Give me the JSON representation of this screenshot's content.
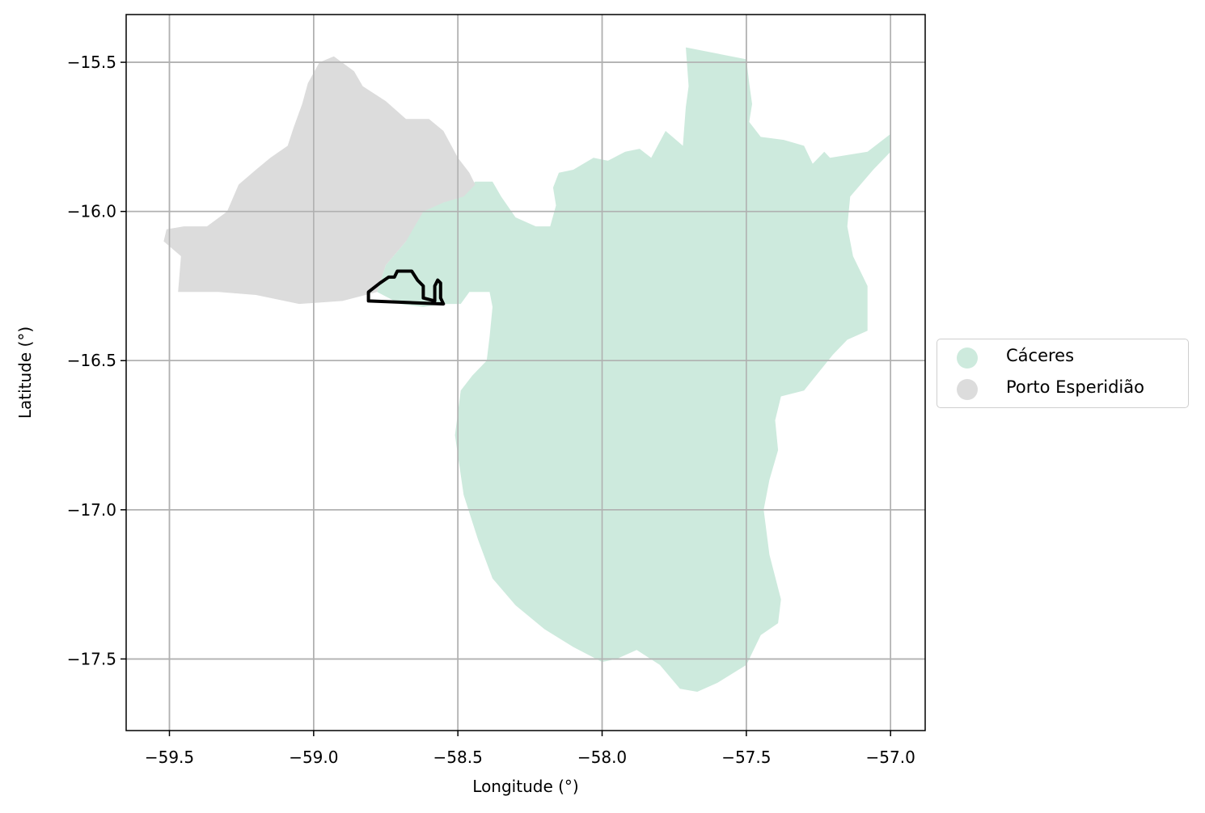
{
  "chart_data": {
    "type": "map",
    "xlabel": "Longitude (°)",
    "ylabel": "Latitude (°)",
    "xlim": [
      -59.65,
      -56.88
    ],
    "ylim": [
      -17.74,
      -15.34
    ],
    "x_ticks": [
      -59.5,
      -59.0,
      -58.5,
      -58.0,
      -57.5,
      -57.0
    ],
    "y_ticks": [
      -15.5,
      -16.0,
      -16.5,
      -17.0,
      -17.5
    ],
    "x_tick_labels": [
      "−59.5",
      "−59.0",
      "−58.5",
      "−58.0",
      "−57.5",
      "−57.0"
    ],
    "y_tick_labels": [
      "−15.5",
      "−16.0",
      "−16.5",
      "−17.0",
      "−17.5"
    ],
    "grid": true,
    "legend_position": "center-right outside",
    "regions": [
      {
        "name": "Cáceres",
        "color": "#cdeadd",
        "polygon": [
          [
            -57.71,
            -15.45
          ],
          [
            -57.5,
            -15.49
          ],
          [
            -57.49,
            -15.57
          ],
          [
            -57.48,
            -15.64
          ],
          [
            -57.49,
            -15.7
          ],
          [
            -57.45,
            -15.75
          ],
          [
            -57.37,
            -15.76
          ],
          [
            -57.3,
            -15.78
          ],
          [
            -57.27,
            -15.84
          ],
          [
            -57.23,
            -15.8
          ],
          [
            -57.21,
            -15.82
          ],
          [
            -57.08,
            -15.8
          ],
          [
            -57.0,
            -15.74
          ],
          [
            -57.0,
            -15.8
          ],
          [
            -57.06,
            -15.86
          ],
          [
            -57.14,
            -15.95
          ],
          [
            -57.15,
            -16.05
          ],
          [
            -57.13,
            -16.15
          ],
          [
            -57.08,
            -16.25
          ],
          [
            -57.08,
            -16.4
          ],
          [
            -57.15,
            -16.43
          ],
          [
            -57.2,
            -16.48
          ],
          [
            -57.3,
            -16.6
          ],
          [
            -57.38,
            -16.62
          ],
          [
            -57.4,
            -16.7
          ],
          [
            -57.39,
            -16.8
          ],
          [
            -57.42,
            -16.9
          ],
          [
            -57.44,
            -17.0
          ],
          [
            -57.42,
            -17.15
          ],
          [
            -57.38,
            -17.3
          ],
          [
            -57.39,
            -17.38
          ],
          [
            -57.45,
            -17.42
          ],
          [
            -57.5,
            -17.52
          ],
          [
            -57.6,
            -17.58
          ],
          [
            -57.67,
            -17.61
          ],
          [
            -57.73,
            -17.6
          ],
          [
            -57.8,
            -17.52
          ],
          [
            -57.88,
            -17.47
          ],
          [
            -57.95,
            -17.5
          ],
          [
            -58.0,
            -17.51
          ],
          [
            -58.1,
            -17.46
          ],
          [
            -58.2,
            -17.4
          ],
          [
            -58.3,
            -17.32
          ],
          [
            -58.38,
            -17.23
          ],
          [
            -58.43,
            -17.1
          ],
          [
            -58.48,
            -16.95
          ],
          [
            -58.51,
            -16.75
          ],
          [
            -58.49,
            -16.6
          ],
          [
            -58.45,
            -16.55
          ],
          [
            -58.4,
            -16.5
          ],
          [
            -58.39,
            -16.42
          ],
          [
            -58.38,
            -16.32
          ],
          [
            -58.39,
            -16.27
          ],
          [
            -58.43,
            -16.27
          ],
          [
            -58.46,
            -16.27
          ],
          [
            -58.49,
            -16.31
          ],
          [
            -58.55,
            -16.31
          ],
          [
            -58.62,
            -16.32
          ],
          [
            -58.7,
            -16.31
          ],
          [
            -58.78,
            -16.27
          ],
          [
            -58.75,
            -16.18
          ],
          [
            -58.68,
            -16.1
          ],
          [
            -58.65,
            -16.0
          ],
          [
            -58.6,
            -15.96
          ],
          [
            -58.55,
            -15.97
          ],
          [
            -58.5,
            -15.95
          ],
          [
            -58.44,
            -15.9
          ],
          [
            -58.38,
            -15.9
          ],
          [
            -58.35,
            -15.95
          ],
          [
            -58.3,
            -16.02
          ],
          [
            -58.23,
            -16.05
          ],
          [
            -58.18,
            -16.05
          ],
          [
            -58.16,
            -15.98
          ],
          [
            -58.17,
            -15.92
          ],
          [
            -58.15,
            -15.87
          ],
          [
            -58.1,
            -15.86
          ],
          [
            -58.03,
            -15.82
          ],
          [
            -57.98,
            -15.83
          ],
          [
            -57.92,
            -15.8
          ],
          [
            -57.87,
            -15.79
          ],
          [
            -57.83,
            -15.82
          ],
          [
            -57.78,
            -15.73
          ],
          [
            -57.72,
            -15.78
          ],
          [
            -57.71,
            -15.65
          ],
          [
            -57.7,
            -15.58
          ]
        ]
      },
      {
        "name": "Porto Esperidião",
        "color": "#dcdcdc",
        "polygon": [
          [
            -58.93,
            -15.48
          ],
          [
            -58.86,
            -15.53
          ],
          [
            -58.83,
            -15.58
          ],
          [
            -58.75,
            -15.63
          ],
          [
            -58.68,
            -15.69
          ],
          [
            -58.6,
            -15.69
          ],
          [
            -58.55,
            -15.73
          ],
          [
            -58.5,
            -15.82
          ],
          [
            -58.46,
            -15.87
          ],
          [
            -58.44,
            -15.91
          ],
          [
            -58.48,
            -15.95
          ],
          [
            -58.55,
            -15.97
          ],
          [
            -58.62,
            -16.0
          ],
          [
            -58.68,
            -16.1
          ],
          [
            -58.75,
            -16.18
          ],
          [
            -58.78,
            -16.27
          ],
          [
            -58.9,
            -16.3
          ],
          [
            -59.05,
            -16.31
          ],
          [
            -59.2,
            -16.28
          ],
          [
            -59.33,
            -16.27
          ],
          [
            -59.47,
            -16.27
          ],
          [
            -59.46,
            -16.15
          ],
          [
            -59.52,
            -16.1
          ],
          [
            -59.51,
            -16.06
          ],
          [
            -59.45,
            -16.05
          ],
          [
            -59.37,
            -16.05
          ],
          [
            -59.3,
            -16.0
          ],
          [
            -59.26,
            -15.91
          ],
          [
            -59.2,
            -15.86
          ],
          [
            -59.15,
            -15.82
          ],
          [
            -59.09,
            -15.78
          ],
          [
            -59.07,
            -15.72
          ],
          [
            -59.04,
            -15.64
          ],
          [
            -59.02,
            -15.57
          ],
          [
            -58.98,
            -15.5
          ]
        ]
      }
    ],
    "outline": {
      "color": "#000000",
      "polygon": [
        [
          -58.81,
          -16.27
        ],
        [
          -58.77,
          -16.24
        ],
        [
          -58.74,
          -16.22
        ],
        [
          -58.72,
          -16.22
        ],
        [
          -58.71,
          -16.2
        ],
        [
          -58.69,
          -16.2
        ],
        [
          -58.66,
          -16.2
        ],
        [
          -58.64,
          -16.23
        ],
        [
          -58.62,
          -16.25
        ],
        [
          -58.62,
          -16.29
        ],
        [
          -58.58,
          -16.3
        ],
        [
          -58.58,
          -16.25
        ],
        [
          -58.57,
          -16.23
        ],
        [
          -58.56,
          -16.24
        ],
        [
          -58.56,
          -16.29
        ],
        [
          -58.55,
          -16.31
        ],
        [
          -58.81,
          -16.3
        ]
      ]
    }
  },
  "legend": {
    "items": [
      {
        "label": "Cáceres",
        "color": "#cdeadd"
      },
      {
        "label": "Porto Esperidião",
        "color": "#dcdcdc"
      }
    ]
  }
}
